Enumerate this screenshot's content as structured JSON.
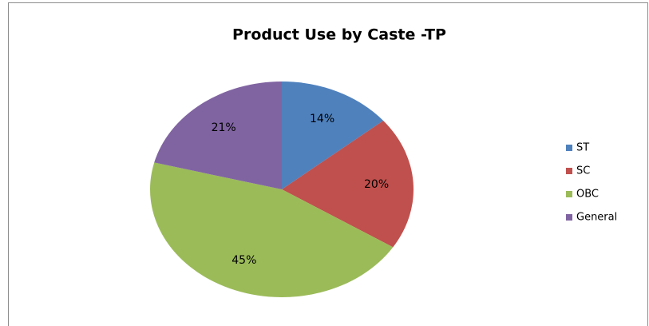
{
  "chart_data": {
    "type": "pie",
    "title": "Product Use by Caste -TP",
    "categories": [
      "ST",
      "SC",
      "OBC",
      "General"
    ],
    "values": [
      14,
      20,
      45,
      21
    ],
    "value_labels": [
      "14%",
      "20%",
      "45%",
      "21%"
    ],
    "colors": [
      "#4f81bd",
      "#c0504d",
      "#9bbb59",
      "#8064a2"
    ],
    "legend": "right"
  }
}
